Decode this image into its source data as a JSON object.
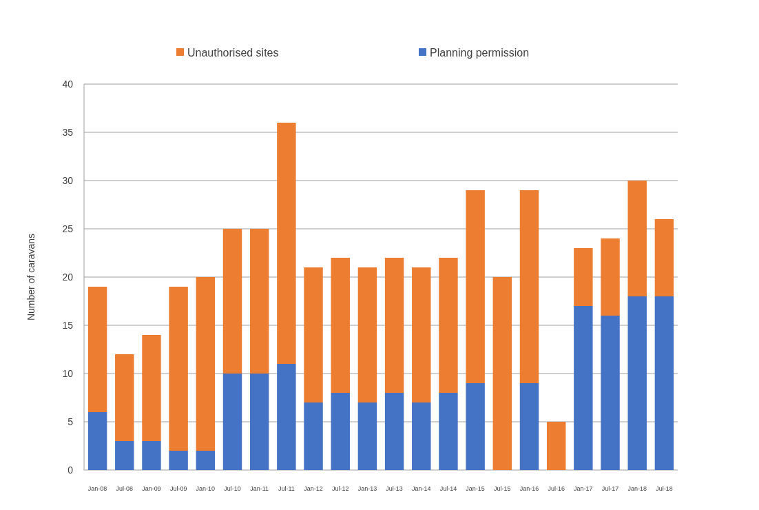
{
  "chart_data": {
    "type": "bar",
    "stacked": true,
    "ylabel": "Number of caravans",
    "categories": [
      "Jan-08",
      "Jul-08",
      "Jan-09",
      "Jul-09",
      "Jan-10",
      "Jul-10",
      "Jan-11",
      "Jul-11",
      "Jan-12",
      "Jul-12",
      "Jan-13",
      "Jul-13",
      "Jan-14",
      "Jul-14",
      "Jan-15",
      "Jul-15",
      "Jan-16",
      "Jul-16",
      "Jan-17",
      "Jul-17",
      "Jan-18",
      "Jul-18"
    ],
    "series": [
      {
        "name": "Planning permission",
        "color": "#4472c4",
        "values": [
          6,
          3,
          3,
          2,
          2,
          10,
          10,
          11,
          7,
          8,
          7,
          8,
          7,
          8,
          9,
          0,
          9,
          0,
          17,
          16,
          18,
          18
        ]
      },
      {
        "name": "Unauthorised sites",
        "color": "#ed7d31",
        "values": [
          13,
          9,
          11,
          17,
          18,
          15,
          15,
          25,
          14,
          14,
          14,
          14,
          14,
          14,
          20,
          20,
          20,
          5,
          6,
          8,
          12,
          8
        ]
      }
    ],
    "ylim": [
      0,
      40
    ],
    "yticks": [
      0,
      5,
      10,
      15,
      20,
      25,
      30,
      35,
      40
    ],
    "grid": "y",
    "legend": "top"
  }
}
